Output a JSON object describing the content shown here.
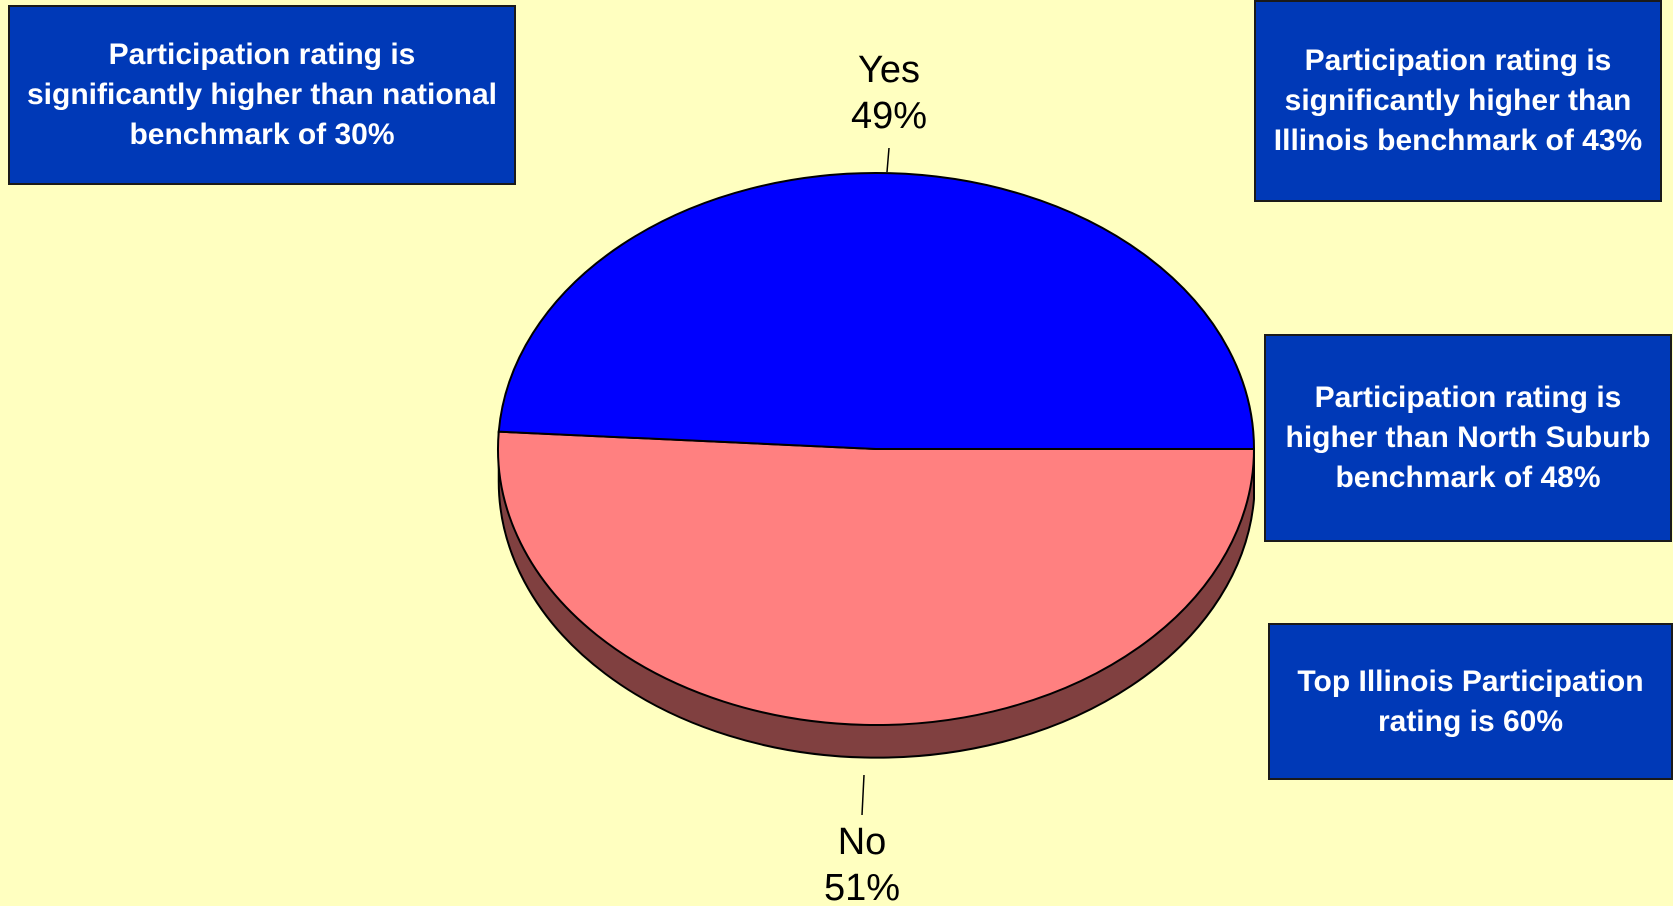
{
  "colors": {
    "background": "#ffffc0",
    "callout_fill": "#0039b7",
    "callout_text": "#ffffff",
    "slice_yes": "#0000ff",
    "slice_no": "#ff8080",
    "slice_no_side": "#804040",
    "outline": "#000000"
  },
  "callouts": [
    {
      "text": "Participation rating is significantly higher than national benchmark of 30%"
    },
    {
      "text": "Participation rating is significantly higher than Illinois benchmark of 43%"
    },
    {
      "text": "Participation rating is higher than North Suburb benchmark of 48%"
    },
    {
      "text": "Top Illinois Participation rating is 60%"
    }
  ],
  "chart_data": {
    "type": "pie",
    "style": "3d",
    "title": "",
    "slices": [
      {
        "label": "Yes",
        "value": 49,
        "value_label": "49%",
        "color": "#0000ff"
      },
      {
        "label": "No",
        "value": 51,
        "value_label": "51%",
        "color": "#ff8080"
      }
    ],
    "label_position": "outside with leader lines",
    "legend": "none"
  }
}
